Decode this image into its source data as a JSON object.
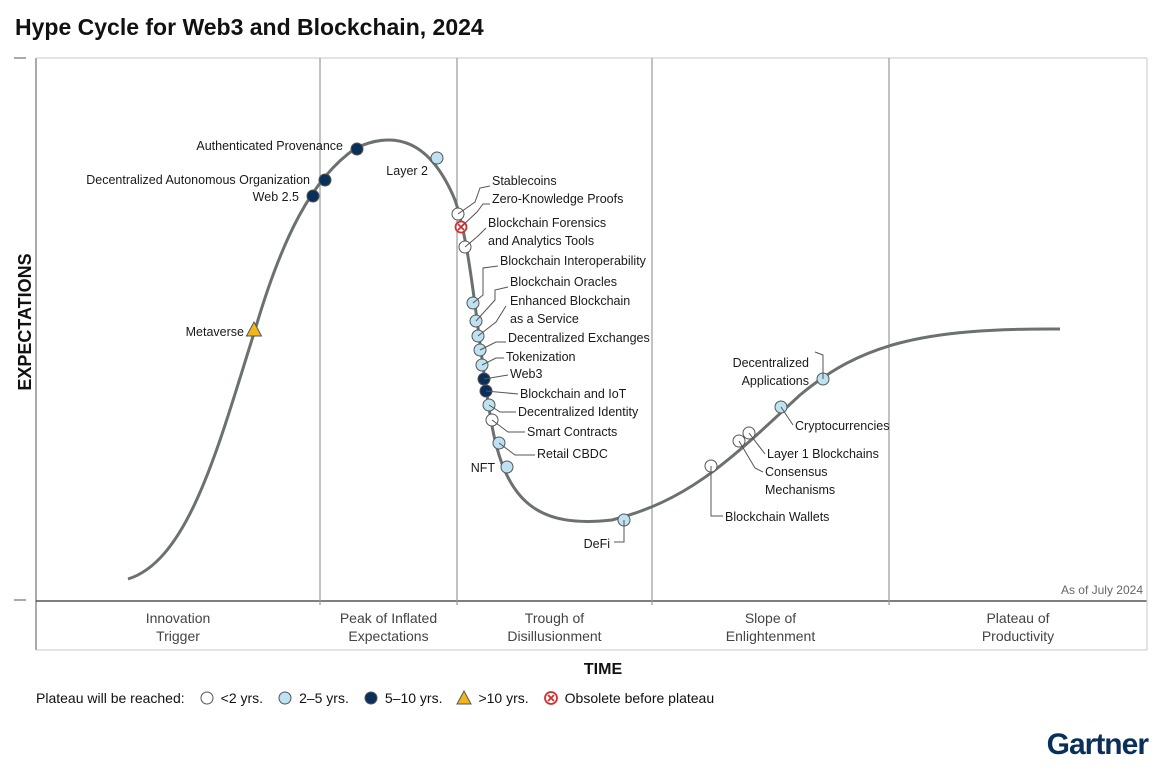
{
  "title": "Hype Cycle for Web3 and Blockchain, 2024",
  "brand": "Gartner",
  "colors": {
    "lt2": "#ffffff",
    "t2to5": "#bfe2f2",
    "t5to10": "#0b2f5b",
    "gt10": "#f2b619",
    "obsolete": "#d32f2f",
    "curve": "#6a716f"
  },
  "legend": {
    "label": "Plateau will be reached:",
    "items": [
      {
        "key": "lt2",
        "label": "<2 yrs.",
        "shape": "circle"
      },
      {
        "key": "t2to5",
        "label": "2–5 yrs.",
        "shape": "circle"
      },
      {
        "key": "t5to10",
        "label": "5–10 yrs.",
        "shape": "circle"
      },
      {
        "key": "gt10",
        "label": ">10 yrs.",
        "shape": "triangle"
      },
      {
        "key": "obsolete",
        "label": "Obsolete before plateau",
        "shape": "x-circle"
      }
    ]
  },
  "chart_data": {
    "type": "scatter",
    "title": "Hype Cycle for Web3 and Blockchain, 2024",
    "xlabel": "TIME",
    "ylabel": "EXPECTATIONS",
    "as_of": "As of July 2024",
    "phases": [
      [
        "Innovation",
        "Trigger"
      ],
      [
        "Peak of Inflated",
        "Expectations"
      ],
      [
        "Trough of",
        "Disillusionment"
      ],
      [
        "Slope of",
        "Enlightenment"
      ],
      [
        "Plateau of",
        "Productivity"
      ]
    ],
    "technologies": [
      {
        "name": [
          "Metaverse"
        ],
        "phase": "Innovation Trigger",
        "category": "gt10"
      },
      {
        "name": [
          "Web 2.5"
        ],
        "phase": "Innovation Trigger",
        "category": "t5to10"
      },
      {
        "name": [
          "Decentralized Autonomous Organization"
        ],
        "phase": "Innovation Trigger",
        "category": "t5to10"
      },
      {
        "name": [
          "Authenticated Provenance"
        ],
        "phase": "Peak of Inflated Expectations",
        "category": "t5to10"
      },
      {
        "name": [
          "Layer 2"
        ],
        "phase": "Peak of Inflated Expectations",
        "category": "t2to5"
      },
      {
        "name": [
          "Stablecoins"
        ],
        "phase": "Trough of Disillusionment",
        "category": "lt2"
      },
      {
        "name": [
          "Zero-Knowledge Proofs"
        ],
        "phase": "Trough of Disillusionment",
        "category": "obsolete"
      },
      {
        "name": [
          "Blockchain Forensics",
          "and Analytics Tools"
        ],
        "phase": "Trough of Disillusionment",
        "category": "lt2"
      },
      {
        "name": [
          "Blockchain Interoperability"
        ],
        "phase": "Trough of Disillusionment",
        "category": "t2to5"
      },
      {
        "name": [
          "Blockchain Oracles"
        ],
        "phase": "Trough of Disillusionment",
        "category": "t2to5"
      },
      {
        "name": [
          "Enhanced Blockchain",
          "as a Service"
        ],
        "phase": "Trough of Disillusionment",
        "category": "t2to5"
      },
      {
        "name": [
          "Decentralized Exchanges"
        ],
        "phase": "Trough of Disillusionment",
        "category": "t2to5"
      },
      {
        "name": [
          "Tokenization"
        ],
        "phase": "Trough of Disillusionment",
        "category": "t2to5"
      },
      {
        "name": [
          "Web3"
        ],
        "phase": "Trough of Disillusionment",
        "category": "t5to10"
      },
      {
        "name": [
          "Blockchain and IoT"
        ],
        "phase": "Trough of Disillusionment",
        "category": "t5to10"
      },
      {
        "name": [
          "Decentralized Identity"
        ],
        "phase": "Trough of Disillusionment",
        "category": "t2to5"
      },
      {
        "name": [
          "Smart Contracts"
        ],
        "phase": "Trough of Disillusionment",
        "category": "lt2"
      },
      {
        "name": [
          "Retail CBDC"
        ],
        "phase": "Trough of Disillusionment",
        "category": "t2to5"
      },
      {
        "name": [
          "NFT"
        ],
        "phase": "Trough of Disillusionment",
        "category": "t2to5"
      },
      {
        "name": [
          "DeFi"
        ],
        "phase": "Trough of Disillusionment",
        "category": "t2to5"
      },
      {
        "name": [
          "Blockchain Wallets"
        ],
        "phase": "Slope of Enlightenment",
        "category": "lt2"
      },
      {
        "name": [
          "Consensus",
          "Mechanisms"
        ],
        "phase": "Slope of Enlightenment",
        "category": "lt2"
      },
      {
        "name": [
          "Layer 1 Blockchains"
        ],
        "phase": "Slope of Enlightenment",
        "category": "lt2"
      },
      {
        "name": [
          "Cryptocurrencies"
        ],
        "phase": "Slope of Enlightenment",
        "category": "t2to5"
      },
      {
        "name": [
          "Decentralized",
          "Applications"
        ],
        "phase": "Slope of Enlightenment",
        "category": "t2to5"
      }
    ]
  }
}
